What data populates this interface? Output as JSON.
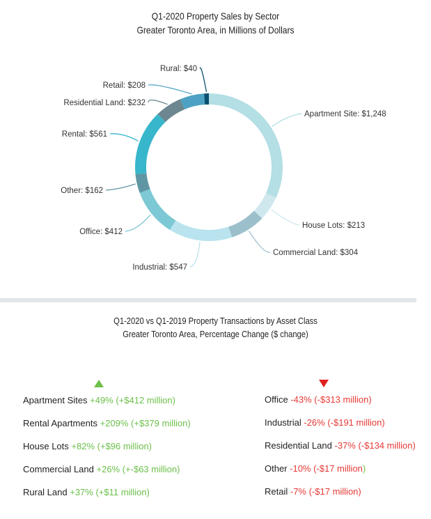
{
  "chart_data": {
    "type": "pie",
    "donut": true,
    "title": "Q1-2020 Property Sales by Sector",
    "subtitle": "Greater Toronto Area, in Millions of Dollars",
    "slices": [
      {
        "label": "Apartment Site: $1,248",
        "value": 1248,
        "color": "#b3dfe5"
      },
      {
        "label": "House Lots: $213",
        "value": 213,
        "color": "#cfe8ee"
      },
      {
        "label": "Commercial Land: $304",
        "value": 304,
        "color": "#9cbfcc"
      },
      {
        "label": "Industrial: $547",
        "value": 547,
        "color": "#b9e3ee"
      },
      {
        "label": "Office: $412",
        "value": 412,
        "color": "#7cc8d4"
      },
      {
        "label": "Other: $162",
        "value": 162,
        "color": "#5f96a4"
      },
      {
        "label": "Rental: $561",
        "value": 561,
        "color": "#38b6cc"
      },
      {
        "label": "Residential Land: $232",
        "value": 232,
        "color": "#6d8790"
      },
      {
        "label": "Retail: $208",
        "value": 208,
        "color": "#4da2c4"
      },
      {
        "label": "Rural: $40",
        "value": 40,
        "color": "#0a4f6e"
      }
    ]
  },
  "section2": {
    "title": "Q1-2020 vs Q1-2019 Property Transactions by Asset Class",
    "subtitle": "Greater Toronto Area, Percentage Change ($ change)",
    "increases": [
      {
        "name": "Apartment Sites",
        "change": "+49% (+$412 million)"
      },
      {
        "name": "Rental Apartments",
        "change": "+209% (+$379 million)"
      },
      {
        "name": "House Lots",
        "change": "+82% (+$96 million)"
      },
      {
        "name": "Commercial Land",
        "change": "+26% (+-$63 million)"
      },
      {
        "name": "Rural Land",
        "change": "+37% (+$11 million)"
      }
    ],
    "decreases": [
      {
        "name": "Office",
        "change": "-43% (-$313 million)",
        "tail": ""
      },
      {
        "name": "Industrial",
        "change": "-26%  (-$191 million)",
        "tail": ""
      },
      {
        "name": "Residential Land",
        "change": "-37% (-$134 million)",
        "tail": ""
      },
      {
        "name": "Other",
        "change": "-10% (-$17 million",
        "tail": ")"
      },
      {
        "name": "Retail",
        "change": "-7% (-$17 million)",
        "tail": ""
      }
    ],
    "up_color": "#6cc04a",
    "down_color": "#e02020"
  }
}
